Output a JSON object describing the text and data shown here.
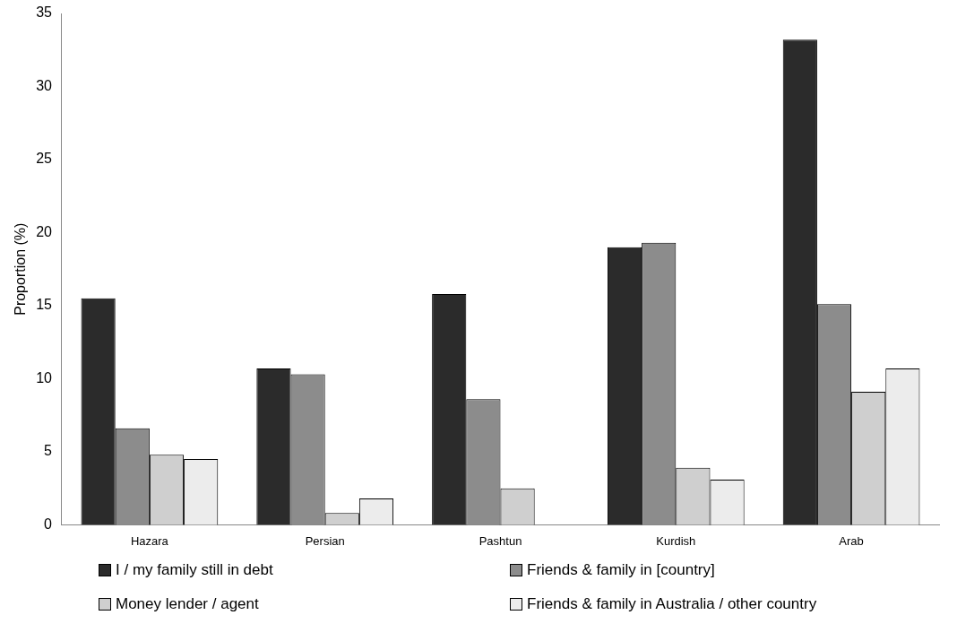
{
  "chart_data": {
    "type": "bar",
    "ylabel": "Proportion (%)",
    "categories": [
      "Hazara",
      "Persian",
      "Pashtun",
      "Kurdish",
      "Arab"
    ],
    "series": [
      {
        "name": "I / my family still in debt",
        "color": "#2b2b2b",
        "values": [
          15.5,
          10.7,
          15.8,
          19.0,
          33.2
        ]
      },
      {
        "name": "Friends & family in [country]",
        "color": "#8c8c8c",
        "values": [
          6.6,
          10.3,
          8.6,
          19.3,
          15.1
        ]
      },
      {
        "name": "Money lender / agent",
        "color": "#cfcfcf",
        "values": [
          4.8,
          0.8,
          2.5,
          3.9,
          9.1
        ]
      },
      {
        "name": "Friends & family in Australia / other country",
        "color": "#ececec",
        "values": [
          4.5,
          1.8,
          null,
          3.1,
          10.7
        ]
      }
    ],
    "ylim": [
      0,
      35
    ],
    "yticks": [
      0,
      5,
      10,
      15,
      20,
      25,
      30,
      35
    ],
    "grid": false,
    "legend": "bottom"
  }
}
